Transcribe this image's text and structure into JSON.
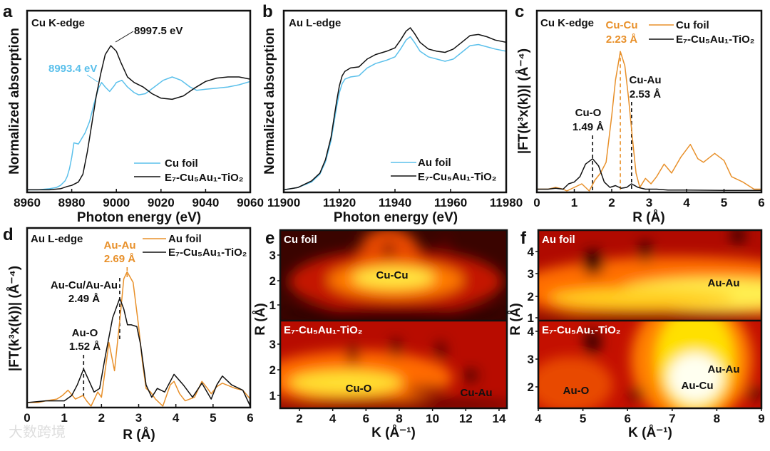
{
  "colors": {
    "cu_foil_xanes": "#5bc0eb",
    "sample": "#111111",
    "foil_exafs": "#e8902a"
  },
  "watermark": "大数跨境",
  "chart_data": [
    {
      "id": "a",
      "type": "line",
      "panel_letter": "a",
      "title": "Cu K-edge",
      "xlabel": "Photon energy (eV)",
      "ylabel": "Normalized absorption",
      "xlim": [
        8960,
        9060
      ],
      "ylim": [
        0,
        1.6
      ],
      "xticks": [
        8960,
        8980,
        9000,
        9020,
        9040,
        9060
      ],
      "annotations": [
        "8997.5 eV",
        "8993.4 eV"
      ],
      "series": [
        {
          "name": "Cu foil",
          "color": "#5bc0eb",
          "x": [
            8960,
            8965,
            8970,
            8973,
            8975,
            8977,
            8978,
            8979,
            8980,
            8981,
            8983,
            8986,
            8988,
            8990,
            8992,
            8993.4,
            8995,
            8997,
            8999,
            9000,
            9002.5,
            9005,
            9008,
            9010,
            9013,
            9017,
            9021,
            9025,
            9029,
            9033,
            9036,
            9040,
            9045,
            9050,
            9055,
            9060
          ],
          "y": [
            0.01,
            0.01,
            0.02,
            0.03,
            0.05,
            0.09,
            0.13,
            0.2,
            0.3,
            0.43,
            0.42,
            0.52,
            0.62,
            0.78,
            0.92,
            0.97,
            0.93,
            0.89,
            0.94,
            0.97,
            0.99,
            0.93,
            0.88,
            0.86,
            0.87,
            0.93,
            0.99,
            1.02,
            0.99,
            0.93,
            0.9,
            0.91,
            0.92,
            0.93,
            0.95,
            0.98
          ]
        },
        {
          "name": "E₇-Cu₅Au₁-TiO₂",
          "color": "#111111",
          "x": [
            8960,
            8970,
            8975,
            8978,
            8980,
            8983,
            8985,
            8987,
            8989,
            8991,
            8993,
            8995,
            8997.5,
            9000,
            9002,
            9005,
            9008,
            9012,
            9016,
            9020,
            9025,
            9030,
            9035,
            9040,
            9045,
            9050,
            9055,
            9060
          ],
          "y": [
            0.01,
            0.01,
            0.02,
            0.04,
            0.05,
            0.08,
            0.15,
            0.35,
            0.6,
            0.85,
            1.05,
            1.22,
            1.3,
            1.25,
            1.15,
            1.02,
            0.97,
            0.93,
            0.87,
            0.83,
            0.82,
            0.85,
            0.92,
            0.98,
            1.01,
            1.02,
            1.02,
            1.0
          ]
        }
      ]
    },
    {
      "id": "b",
      "type": "line",
      "panel_letter": "b",
      "title": "Au L-edge",
      "xlabel": "Photon energy (eV)",
      "ylabel": "Normalized absorption",
      "xlim": [
        11900,
        11980
      ],
      "ylim": [
        0,
        1.6
      ],
      "xticks": [
        11900,
        11920,
        11940,
        11960,
        11980
      ],
      "series": [
        {
          "name": "Au foil",
          "color": "#5bc0eb",
          "x": [
            11900,
            11905,
            11910,
            11913,
            11915,
            11917,
            11918,
            11919,
            11920,
            11921,
            11922,
            11924,
            11927,
            11930,
            11933,
            11937,
            11940,
            11942,
            11944,
            11945.5,
            11947,
            11949,
            11952,
            11955,
            11958,
            11961,
            11964,
            11967,
            11970,
            11973,
            11976,
            11980
          ],
          "y": [
            0.01,
            0.03,
            0.08,
            0.15,
            0.26,
            0.45,
            0.6,
            0.75,
            0.88,
            0.96,
            1.0,
            1.02,
            1.03,
            1.1,
            1.14,
            1.17,
            1.2,
            1.27,
            1.35,
            1.38,
            1.33,
            1.25,
            1.2,
            1.18,
            1.16,
            1.18,
            1.24,
            1.3,
            1.31,
            1.29,
            1.27,
            1.25
          ]
        },
        {
          "name": "E₇-Cu₅Au₁-TiO₂",
          "color": "#111111",
          "x": [
            11900,
            11905,
            11910,
            11913,
            11915,
            11917,
            11918,
            11919,
            11920,
            11921,
            11922,
            11924,
            11927,
            11930,
            11933,
            11937,
            11940,
            11942,
            11944,
            11945.5,
            11947,
            11949,
            11952,
            11955,
            11958,
            11961,
            11964,
            11967,
            11970,
            11973,
            11976,
            11980
          ],
          "y": [
            0.01,
            0.03,
            0.09,
            0.16,
            0.28,
            0.48,
            0.64,
            0.8,
            0.94,
            1.03,
            1.07,
            1.1,
            1.11,
            1.18,
            1.22,
            1.25,
            1.28,
            1.35,
            1.43,
            1.46,
            1.41,
            1.33,
            1.27,
            1.25,
            1.24,
            1.27,
            1.33,
            1.39,
            1.4,
            1.38,
            1.35,
            1.33
          ]
        }
      ]
    },
    {
      "id": "c",
      "type": "line",
      "panel_letter": "c",
      "title": "Cu K-edge",
      "xlabel": "R (Å)",
      "ylabel": "|FT(k³x(k))| (Å⁻⁴)",
      "xlim": [
        0,
        6
      ],
      "ylim": [
        0,
        1
      ],
      "xticks": [
        0,
        1,
        2,
        3,
        4,
        5,
        6
      ],
      "annotations": [
        {
          "name": "Cu-Cu",
          "value": "2.23 Å",
          "r": 2.23,
          "color": "#e8902a"
        },
        {
          "name": "Cu-Au",
          "value": "2.53 Å",
          "r": 2.53,
          "color": "#111111"
        },
        {
          "name": "Cu-O",
          "value": "1.49 Å",
          "r": 1.49,
          "color": "#111111"
        }
      ],
      "series": [
        {
          "name": "Cu foil",
          "color": "#e8902a",
          "x": [
            0,
            0.3,
            0.5,
            0.7,
            0.8,
            1.0,
            1.2,
            1.4,
            1.55,
            1.7,
            1.85,
            2.0,
            2.1,
            2.23,
            2.35,
            2.45,
            2.55,
            2.65,
            2.75,
            2.9,
            3.05,
            3.2,
            3.4,
            3.6,
            3.85,
            4.1,
            4.3,
            4.45,
            4.75,
            5.0,
            5.2,
            5.5,
            5.8,
            6.0
          ],
          "y": [
            0.01,
            0.01,
            0.02,
            0.01,
            0.0,
            0.02,
            0.04,
            0.0,
            0.06,
            0.1,
            0.16,
            0.42,
            0.62,
            0.78,
            0.7,
            0.52,
            0.3,
            0.1,
            0.02,
            0.07,
            0.04,
            0.08,
            0.15,
            0.1,
            0.19,
            0.26,
            0.18,
            0.16,
            0.21,
            0.17,
            0.08,
            0.05,
            0.01,
            0.01
          ]
        },
        {
          "name": "E₇-Cu₅Au₁-TiO₂",
          "color": "#111111",
          "x": [
            0,
            0.3,
            0.5,
            0.7,
            0.85,
            1.0,
            1.15,
            1.3,
            1.49,
            1.65,
            1.8,
            1.95,
            2.1,
            2.25,
            2.4,
            2.53,
            2.7,
            2.9,
            3.2,
            3.5,
            4.0,
            5.0,
            6.0
          ],
          "y": [
            0.01,
            0.01,
            0.015,
            0.01,
            0.04,
            0.05,
            0.08,
            0.15,
            0.18,
            0.14,
            0.05,
            0.02,
            0.03,
            0.015,
            0.02,
            0.04,
            0.02,
            0.01,
            0.01,
            0.005,
            0.005,
            0.003,
            0.003
          ]
        }
      ]
    },
    {
      "id": "d",
      "type": "line",
      "panel_letter": "d",
      "title": "Au L-edge",
      "xlabel": "R (Å)",
      "ylabel": "|FT(k³x(k))| (Å⁻⁴)",
      "xlim": [
        0,
        6
      ],
      "ylim": [
        0,
        1
      ],
      "xticks": [
        0,
        1,
        2,
        3,
        4,
        5,
        6
      ],
      "annotations": [
        {
          "name": "Au-Au",
          "value": "2.69 Å",
          "r": 2.69,
          "color": "#e8902a"
        },
        {
          "name": "Au-Cu/Au-Au",
          "value": "2.49 Å",
          "r": 2.49,
          "color": "#111111"
        },
        {
          "name": "Au-O",
          "value": "1.52 Å",
          "r": 1.52,
          "color": "#111111"
        }
      ],
      "series": [
        {
          "name": "Au foil",
          "color": "#e8902a",
          "x": [
            0,
            0.3,
            0.5,
            0.8,
            0.95,
            1.1,
            1.3,
            1.5,
            1.6,
            1.72,
            1.9,
            2.0,
            2.2,
            2.35,
            2.5,
            2.6,
            2.69,
            2.85,
            3.0,
            3.1,
            3.2,
            3.32,
            3.45,
            3.65,
            3.85,
            3.95,
            4.1,
            4.25,
            4.5,
            4.7,
            4.85,
            4.95,
            5.1,
            5.25,
            5.6,
            5.8,
            6.0
          ],
          "y": [
            0.02,
            0.02,
            0.03,
            0.04,
            0.06,
            0.09,
            0.04,
            0.06,
            0.03,
            0.0,
            0.08,
            0.05,
            0.36,
            0.2,
            0.5,
            0.72,
            0.76,
            0.7,
            0.45,
            0.25,
            0.1,
            0.08,
            0.04,
            0.0,
            0.12,
            0.14,
            0.07,
            0.03,
            0.05,
            0.14,
            0.1,
            0.07,
            0.11,
            0.13,
            0.1,
            0.09,
            0.04
          ]
        },
        {
          "name": "E₇-Cu₅Au₁-TiO₂",
          "color": "#111111",
          "x": [
            0,
            0.5,
            1.0,
            1.2,
            1.35,
            1.52,
            1.65,
            1.8,
            1.95,
            2.1,
            2.3,
            2.49,
            2.6,
            2.7,
            2.8,
            2.95,
            3.05,
            3.2,
            3.35,
            3.5,
            3.7,
            3.95,
            4.2,
            4.45,
            4.7,
            4.95,
            5.1,
            5.25,
            5.5,
            5.8,
            6.0
          ],
          "y": [
            0.02,
            0.03,
            0.03,
            0.06,
            0.12,
            0.21,
            0.15,
            0.08,
            0.1,
            0.28,
            0.5,
            0.61,
            0.55,
            0.46,
            0.46,
            0.45,
            0.35,
            0.12,
            0.05,
            0.1,
            0.08,
            0.18,
            0.12,
            0.05,
            0.13,
            0.04,
            0.12,
            0.17,
            0.12,
            0.09,
            0.0
          ]
        }
      ]
    },
    {
      "id": "e",
      "type": "heatmap",
      "panel_letter": "e",
      "xlabel": "K (Å⁻¹)",
      "ylabel": "R (Å)",
      "xlim": [
        0.85,
        14.5
      ],
      "xticks": [
        2,
        4,
        6,
        8,
        10,
        12,
        14
      ],
      "subplots": [
        {
          "title": "Cu foil",
          "yticks": [
            1,
            2,
            3
          ],
          "labels": [
            "Cu-Cu"
          ]
        },
        {
          "title": "E₇-Cu₅Au₁-TiO₂",
          "yticks": [
            1,
            2,
            3
          ],
          "labels": [
            "Cu-O",
            "Cu-Au"
          ]
        }
      ]
    },
    {
      "id": "f",
      "type": "heatmap",
      "panel_letter": "f",
      "xlabel": "K (Å⁻¹)",
      "ylabel": "R (Å)",
      "xlim": [
        4,
        9
      ],
      "xticks": [
        4,
        5,
        6,
        7,
        8,
        9
      ],
      "subplots": [
        {
          "title": "Au foil",
          "yticks": [
            1,
            2,
            3,
            4
          ],
          "labels": [
            "Au-Au"
          ]
        },
        {
          "title": "E₇-Cu₅Au₁-TiO₂",
          "yticks": [
            2,
            3,
            4
          ],
          "labels": [
            "Au-Au",
            "Au-Cu",
            "Au-O"
          ]
        }
      ]
    }
  ]
}
